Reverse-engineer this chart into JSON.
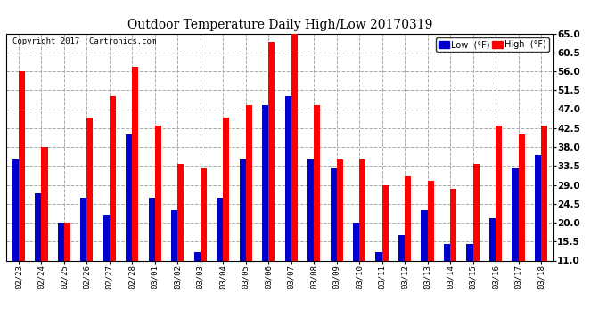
{
  "title": "Outdoor Temperature Daily High/Low 20170319",
  "copyright": "Copyright 2017  Cartronics.com",
  "categories": [
    "02/23",
    "02/24",
    "02/25",
    "02/26",
    "02/27",
    "02/28",
    "03/01",
    "03/02",
    "03/03",
    "03/04",
    "03/05",
    "03/06",
    "03/07",
    "03/08",
    "03/09",
    "03/10",
    "03/11",
    "03/12",
    "03/13",
    "03/14",
    "03/15",
    "03/16",
    "03/17",
    "03/18"
  ],
  "high_values": [
    56,
    38,
    20,
    45,
    50,
    57,
    43,
    34,
    33,
    45,
    48,
    63,
    65,
    48,
    35,
    35,
    29,
    31,
    30,
    28,
    34,
    43,
    41,
    43
  ],
  "low_values": [
    35,
    27,
    20,
    26,
    22,
    41,
    26,
    23,
    13,
    26,
    35,
    48,
    50,
    35,
    33,
    20,
    13,
    17,
    23,
    15,
    15,
    21,
    33,
    36
  ],
  "high_color": "#ff0000",
  "low_color": "#0000cc",
  "ylim_min": 11.0,
  "ylim_max": 65.0,
  "yticks": [
    11.0,
    15.5,
    20.0,
    24.5,
    29.0,
    33.5,
    38.0,
    42.5,
    47.0,
    51.5,
    56.0,
    60.5,
    65.0
  ],
  "background_color": "#ffffff",
  "grid_color": "#aaaaaa",
  "legend_low_label": "Low  (°F)",
  "legend_high_label": "High  (°F)",
  "bar_width": 0.28
}
